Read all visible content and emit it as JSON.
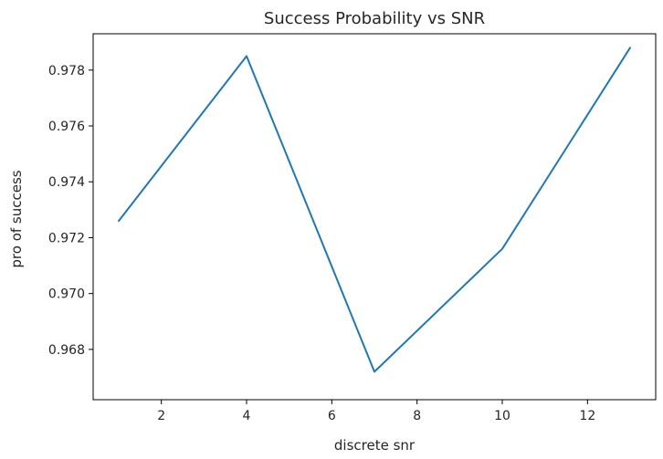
{
  "chart_data": {
    "type": "line",
    "title": "Success Probability vs SNR",
    "xlabel": "discrete snr",
    "ylabel": "pro of success",
    "xlim": [
      0.4,
      13.6
    ],
    "ylim": [
      0.9662,
      0.9793
    ],
    "xticks": [
      2,
      4,
      6,
      8,
      10,
      12
    ],
    "xtick_labels": [
      "2",
      "4",
      "6",
      "8",
      "10",
      "12"
    ],
    "yticks": [
      0.968,
      0.97,
      0.972,
      0.974,
      0.976,
      0.978
    ],
    "ytick_labels": [
      "0.968",
      "0.970",
      "0.972",
      "0.974",
      "0.976",
      "0.978"
    ],
    "grid": false,
    "legend": "none",
    "series": [
      {
        "color": "#1f77b4",
        "x": [
          1,
          4,
          7,
          10,
          13
        ],
        "y": [
          0.9726,
          0.9785,
          0.9672,
          0.9716,
          0.9788
        ]
      }
    ]
  }
}
